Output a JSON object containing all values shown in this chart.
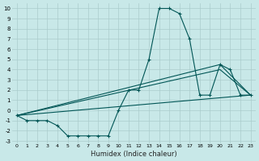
{
  "xlabel": "Humidex (Indice chaleur)",
  "bg_color": "#c8e8e8",
  "grid_color": "#aacccc",
  "line_color": "#005555",
  "marker": "+",
  "xlim": [
    -0.5,
    23.5
  ],
  "ylim": [
    -3.2,
    10.5
  ],
  "xtick_labels": [
    "0",
    "1",
    "2",
    "3",
    "4",
    "5",
    "6",
    "7",
    "8",
    "9",
    "10",
    "11",
    "12",
    "13",
    "14",
    "15",
    "16",
    "17",
    "18",
    "19",
    "20",
    "21",
    "22",
    "23"
  ],
  "ytick_vals": [
    -3,
    -2,
    -1,
    0,
    1,
    2,
    3,
    4,
    5,
    6,
    7,
    8,
    9,
    10
  ],
  "curve1_x": [
    0,
    1,
    2,
    3,
    4,
    5,
    6,
    7,
    8,
    9,
    10,
    11,
    12,
    13,
    14,
    15,
    16,
    17,
    18,
    19,
    20,
    21,
    22,
    23
  ],
  "curve1_y": [
    -0.5,
    -1.0,
    -1.0,
    -1.0,
    -1.5,
    -2.5,
    -2.5,
    -2.5,
    -2.5,
    -2.5,
    0.0,
    2.0,
    2.0,
    5.0,
    10.0,
    10.0,
    9.5,
    7.0,
    1.5,
    1.5,
    4.5,
    4.0,
    1.5,
    1.5
  ],
  "curve2_x": [
    0,
    23
  ],
  "curve2_y": [
    -0.5,
    1.5
  ],
  "curve3_x": [
    0,
    20,
    23
  ],
  "curve3_y": [
    -0.5,
    4.5,
    1.5
  ],
  "curve4_x": [
    0,
    20,
    23
  ],
  "curve4_y": [
    -0.5,
    4.0,
    1.5
  ]
}
